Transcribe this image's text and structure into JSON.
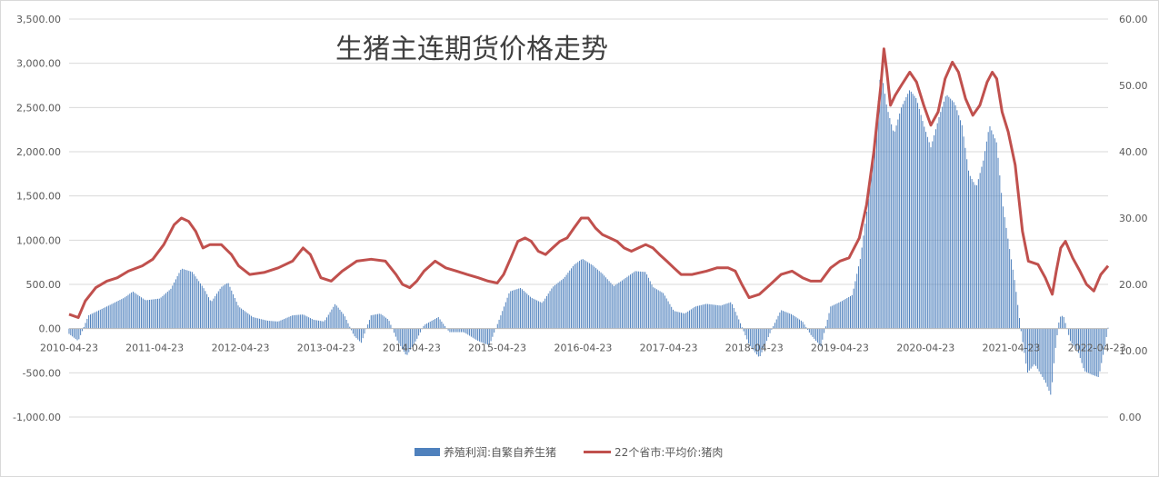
{
  "chart_data": {
    "type": "bar+line",
    "title": "生猪主连期货价格走势",
    "left_axis": {
      "ylim": [
        -1000,
        3500
      ],
      "ticks": [
        "3,500.00",
        "3,000.00",
        "2,500.00",
        "2,000.00",
        "1,500.00",
        "1,000.00",
        "500.00",
        "0.00",
        "-500.00",
        "-1,000.00"
      ],
      "tick_values": [
        3500,
        3000,
        2500,
        2000,
        1500,
        1000,
        500,
        0,
        -500,
        -1000
      ]
    },
    "right_axis": {
      "ylim": [
        0,
        60
      ],
      "ticks": [
        "60.00",
        "50.00",
        "40.00",
        "30.00",
        "20.00",
        "10.00",
        "0.00"
      ],
      "tick_values": [
        60,
        50,
        40,
        30,
        20,
        10,
        0
      ]
    },
    "x_axis": {
      "range": [
        "2010-04-23",
        "2022-06-10"
      ],
      "tick_labels": [
        "2010-04-23",
        "2011-04-23",
        "2012-04-23",
        "2013-04-23",
        "2014-04-23",
        "2015-04-23",
        "2016-04-23",
        "2017-04-23",
        "2018-04-23",
        "2019-04-23",
        "2020-04-23",
        "2021-04-23",
        "2022-04-23"
      ]
    },
    "grid": "horizontal",
    "legend_position": "bottom",
    "series": [
      {
        "name": "养殖利润:自繁自养生猪",
        "chart": "bar",
        "axis": "left",
        "color": "#4f81bd",
        "points": [
          [
            "2010-04-23",
            -60
          ],
          [
            "2010-06-01",
            -140
          ],
          [
            "2010-07-15",
            150
          ],
          [
            "2010-10-01",
            250
          ],
          [
            "2010-12-15",
            350
          ],
          [
            "2011-01-20",
            420
          ],
          [
            "2011-03-15",
            320
          ],
          [
            "2011-05-15",
            340
          ],
          [
            "2011-07-01",
            450
          ],
          [
            "2011-08-15",
            680
          ],
          [
            "2011-10-01",
            640
          ],
          [
            "2011-11-20",
            450
          ],
          [
            "2011-12-20",
            300
          ],
          [
            "2012-02-01",
            470
          ],
          [
            "2012-03-01",
            520
          ],
          [
            "2012-04-15",
            250
          ],
          [
            "2012-06-15",
            130
          ],
          [
            "2012-08-15",
            90
          ],
          [
            "2012-10-01",
            80
          ],
          [
            "2012-12-01",
            150
          ],
          [
            "2013-01-15",
            160
          ],
          [
            "2013-03-01",
            100
          ],
          [
            "2013-04-15",
            80
          ],
          [
            "2013-06-01",
            280
          ],
          [
            "2013-07-10",
            150
          ],
          [
            "2013-08-20",
            -80
          ],
          [
            "2013-09-20",
            -160
          ],
          [
            "2013-11-01",
            150
          ],
          [
            "2013-12-10",
            170
          ],
          [
            "2014-01-15",
            100
          ],
          [
            "2014-02-20",
            -130
          ],
          [
            "2014-04-01",
            -310
          ],
          [
            "2014-05-15",
            -120
          ],
          [
            "2014-06-15",
            40
          ],
          [
            "2014-08-15",
            130
          ],
          [
            "2014-10-01",
            -40
          ],
          [
            "2014-12-01",
            -40
          ],
          [
            "2015-02-01",
            -140
          ],
          [
            "2015-03-20",
            -190
          ],
          [
            "2015-05-01",
            100
          ],
          [
            "2015-06-15",
            420
          ],
          [
            "2015-08-01",
            460
          ],
          [
            "2015-09-15",
            350
          ],
          [
            "2015-11-01",
            290
          ],
          [
            "2015-12-15",
            470
          ],
          [
            "2016-02-01",
            570
          ],
          [
            "2016-03-15",
            720
          ],
          [
            "2016-04-20",
            790
          ],
          [
            "2016-06-01",
            720
          ],
          [
            "2016-07-15",
            620
          ],
          [
            "2016-09-01",
            480
          ],
          [
            "2016-10-15",
            560
          ],
          [
            "2016-12-01",
            650
          ],
          [
            "2017-01-15",
            640
          ],
          [
            "2017-02-15",
            470
          ],
          [
            "2017-04-01",
            400
          ],
          [
            "2017-05-15",
            200
          ],
          [
            "2017-07-01",
            170
          ],
          [
            "2017-08-15",
            250
          ],
          [
            "2017-10-01",
            280
          ],
          [
            "2017-12-01",
            260
          ],
          [
            "2018-01-15",
            300
          ],
          [
            "2018-02-20",
            80
          ],
          [
            "2018-04-01",
            -180
          ],
          [
            "2018-05-15",
            -330
          ],
          [
            "2018-07-01",
            -40
          ],
          [
            "2018-08-15",
            210
          ],
          [
            "2018-10-01",
            160
          ],
          [
            "2018-11-15",
            80
          ],
          [
            "2018-12-20",
            -70
          ],
          [
            "2019-02-01",
            -200
          ],
          [
            "2019-03-15",
            250
          ],
          [
            "2019-05-01",
            310
          ],
          [
            "2019-06-15",
            380
          ],
          [
            "2019-07-20",
            800
          ],
          [
            "2019-08-20",
            1400
          ],
          [
            "2019-09-20",
            2100
          ],
          [
            "2019-10-15",
            2950
          ],
          [
            "2019-11-10",
            2500
          ],
          [
            "2019-12-10",
            2200
          ],
          [
            "2020-01-10",
            2500
          ],
          [
            "2020-02-15",
            2700
          ],
          [
            "2020-03-15",
            2600
          ],
          [
            "2020-04-15",
            2300
          ],
          [
            "2020-05-15",
            2050
          ],
          [
            "2020-06-20",
            2400
          ],
          [
            "2020-07-20",
            2650
          ],
          [
            "2020-08-25",
            2550
          ],
          [
            "2020-09-25",
            2300
          ],
          [
            "2020-10-25",
            1750
          ],
          [
            "2020-11-25",
            1600
          ],
          [
            "2020-12-25",
            1900
          ],
          [
            "2021-01-20",
            2300
          ],
          [
            "2021-02-20",
            2100
          ],
          [
            "2021-03-15",
            1450
          ],
          [
            "2021-04-10",
            1000
          ],
          [
            "2021-05-10",
            500
          ],
          [
            "2021-06-05",
            -50
          ],
          [
            "2021-07-01",
            -500
          ],
          [
            "2021-08-01",
            -400
          ],
          [
            "2021-09-15",
            -600
          ],
          [
            "2021-10-10",
            -760
          ],
          [
            "2021-10-25",
            -300
          ],
          [
            "2021-11-15",
            130
          ],
          [
            "2021-12-01",
            150
          ],
          [
            "2022-01-01",
            -150
          ],
          [
            "2022-02-01",
            -250
          ],
          [
            "2022-03-01",
            -480
          ],
          [
            "2022-04-01",
            -520
          ],
          [
            "2022-05-01",
            -550
          ],
          [
            "2022-05-25",
            -230
          ],
          [
            "2022-06-10",
            10
          ]
        ]
      },
      {
        "name": "22个省市:平均价:猪肉",
        "chart": "line",
        "axis": "right",
        "color": "#c0504d",
        "points": [
          [
            "2010-04-23",
            15.5
          ],
          [
            "2010-06-01",
            15.0
          ],
          [
            "2010-07-01",
            17.5
          ],
          [
            "2010-08-15",
            19.5
          ],
          [
            "2010-10-01",
            20.5
          ],
          [
            "2010-11-15",
            21.0
          ],
          [
            "2011-01-01",
            22.0
          ],
          [
            "2011-03-01",
            22.8
          ],
          [
            "2011-04-15",
            23.8
          ],
          [
            "2011-06-01",
            26.0
          ],
          [
            "2011-07-15",
            29.0
          ],
          [
            "2011-08-15",
            30.0
          ],
          [
            "2011-09-15",
            29.5
          ],
          [
            "2011-10-15",
            28.0
          ],
          [
            "2011-11-15",
            25.5
          ],
          [
            "2011-12-15",
            26.0
          ],
          [
            "2012-02-01",
            26.0
          ],
          [
            "2012-03-15",
            24.5
          ],
          [
            "2012-04-15",
            22.8
          ],
          [
            "2012-06-01",
            21.5
          ],
          [
            "2012-08-01",
            21.8
          ],
          [
            "2012-10-01",
            22.5
          ],
          [
            "2012-12-01",
            23.5
          ],
          [
            "2013-01-15",
            25.5
          ],
          [
            "2013-02-15",
            24.5
          ],
          [
            "2013-04-01",
            21.0
          ],
          [
            "2013-05-15",
            20.5
          ],
          [
            "2013-07-01",
            22.0
          ],
          [
            "2013-09-01",
            23.5
          ],
          [
            "2013-11-01",
            23.8
          ],
          [
            "2014-01-01",
            23.5
          ],
          [
            "2014-02-15",
            21.5
          ],
          [
            "2014-03-15",
            20.0
          ],
          [
            "2014-04-15",
            19.5
          ],
          [
            "2014-05-15",
            20.5
          ],
          [
            "2014-06-15",
            22.0
          ],
          [
            "2014-08-01",
            23.5
          ],
          [
            "2014-09-15",
            22.5
          ],
          [
            "2014-11-01",
            22.0
          ],
          [
            "2014-12-15",
            21.5
          ],
          [
            "2015-02-01",
            21.0
          ],
          [
            "2015-03-15",
            20.5
          ],
          [
            "2015-04-23",
            20.2
          ],
          [
            "2015-05-20",
            21.5
          ],
          [
            "2015-06-20",
            24.0
          ],
          [
            "2015-07-20",
            26.5
          ],
          [
            "2015-08-20",
            27.0
          ],
          [
            "2015-09-15",
            26.5
          ],
          [
            "2015-10-15",
            25.0
          ],
          [
            "2015-11-15",
            24.5
          ],
          [
            "2015-12-15",
            25.5
          ],
          [
            "2016-01-15",
            26.5
          ],
          [
            "2016-02-15",
            27.0
          ],
          [
            "2016-03-15",
            28.5
          ],
          [
            "2016-04-15",
            30.0
          ],
          [
            "2016-05-15",
            30.0
          ],
          [
            "2016-06-15",
            28.5
          ],
          [
            "2016-07-15",
            27.5
          ],
          [
            "2016-08-15",
            27.0
          ],
          [
            "2016-09-15",
            26.5
          ],
          [
            "2016-10-15",
            25.5
          ],
          [
            "2016-11-15",
            25.0
          ],
          [
            "2016-12-15",
            25.5
          ],
          [
            "2017-01-15",
            26.0
          ],
          [
            "2017-02-15",
            25.5
          ],
          [
            "2017-03-15",
            24.5
          ],
          [
            "2017-04-15",
            23.5
          ],
          [
            "2017-05-15",
            22.5
          ],
          [
            "2017-06-15",
            21.5
          ],
          [
            "2017-08-01",
            21.5
          ],
          [
            "2017-10-01",
            22.0
          ],
          [
            "2017-11-15",
            22.5
          ],
          [
            "2018-01-01",
            22.5
          ],
          [
            "2018-02-01",
            22.0
          ],
          [
            "2018-03-01",
            20.0
          ],
          [
            "2018-04-01",
            18.0
          ],
          [
            "2018-05-15",
            18.5
          ],
          [
            "2018-07-01",
            20.0
          ],
          [
            "2018-08-15",
            21.5
          ],
          [
            "2018-10-01",
            22.0
          ],
          [
            "2018-11-15",
            21.0
          ],
          [
            "2018-12-20",
            20.5
          ],
          [
            "2019-02-01",
            20.5
          ],
          [
            "2019-03-15",
            22.5
          ],
          [
            "2019-04-23",
            23.5
          ],
          [
            "2019-06-01",
            24.0
          ],
          [
            "2019-07-15",
            27.0
          ],
          [
            "2019-08-15",
            32.0
          ],
          [
            "2019-09-15",
            40.0
          ],
          [
            "2019-10-15",
            50.0
          ],
          [
            "2019-10-28",
            55.5
          ],
          [
            "2019-11-10",
            52.0
          ],
          [
            "2019-11-25",
            47.0
          ],
          [
            "2019-12-15",
            48.5
          ],
          [
            "2020-01-10",
            50.0
          ],
          [
            "2020-02-15",
            52.0
          ],
          [
            "2020-03-15",
            50.5
          ],
          [
            "2020-04-15",
            47.0
          ],
          [
            "2020-05-15",
            44.0
          ],
          [
            "2020-06-15",
            46.0
          ],
          [
            "2020-07-15",
            51.0
          ],
          [
            "2020-08-15",
            53.5
          ],
          [
            "2020-09-10",
            52.0
          ],
          [
            "2020-10-10",
            48.0
          ],
          [
            "2020-11-10",
            45.5
          ],
          [
            "2020-12-10",
            47.0
          ],
          [
            "2021-01-10",
            50.5
          ],
          [
            "2021-02-01",
            52.0
          ],
          [
            "2021-02-20",
            51.0
          ],
          [
            "2021-03-15",
            46.0
          ],
          [
            "2021-04-10",
            43.0
          ],
          [
            "2021-05-10",
            38.0
          ],
          [
            "2021-06-10",
            28.0
          ],
          [
            "2021-07-05",
            23.5
          ],
          [
            "2021-08-15",
            23.0
          ],
          [
            "2021-09-15",
            21.0
          ],
          [
            "2021-10-15",
            18.5
          ],
          [
            "2021-11-01",
            22.0
          ],
          [
            "2021-11-20",
            25.5
          ],
          [
            "2021-12-10",
            26.5
          ],
          [
            "2022-01-10",
            24.0
          ],
          [
            "2022-02-10",
            22.0
          ],
          [
            "2022-03-10",
            20.0
          ],
          [
            "2022-04-10",
            19.0
          ],
          [
            "2022-05-10",
            21.5
          ],
          [
            "2022-06-10",
            22.8
          ]
        ]
      }
    ]
  }
}
